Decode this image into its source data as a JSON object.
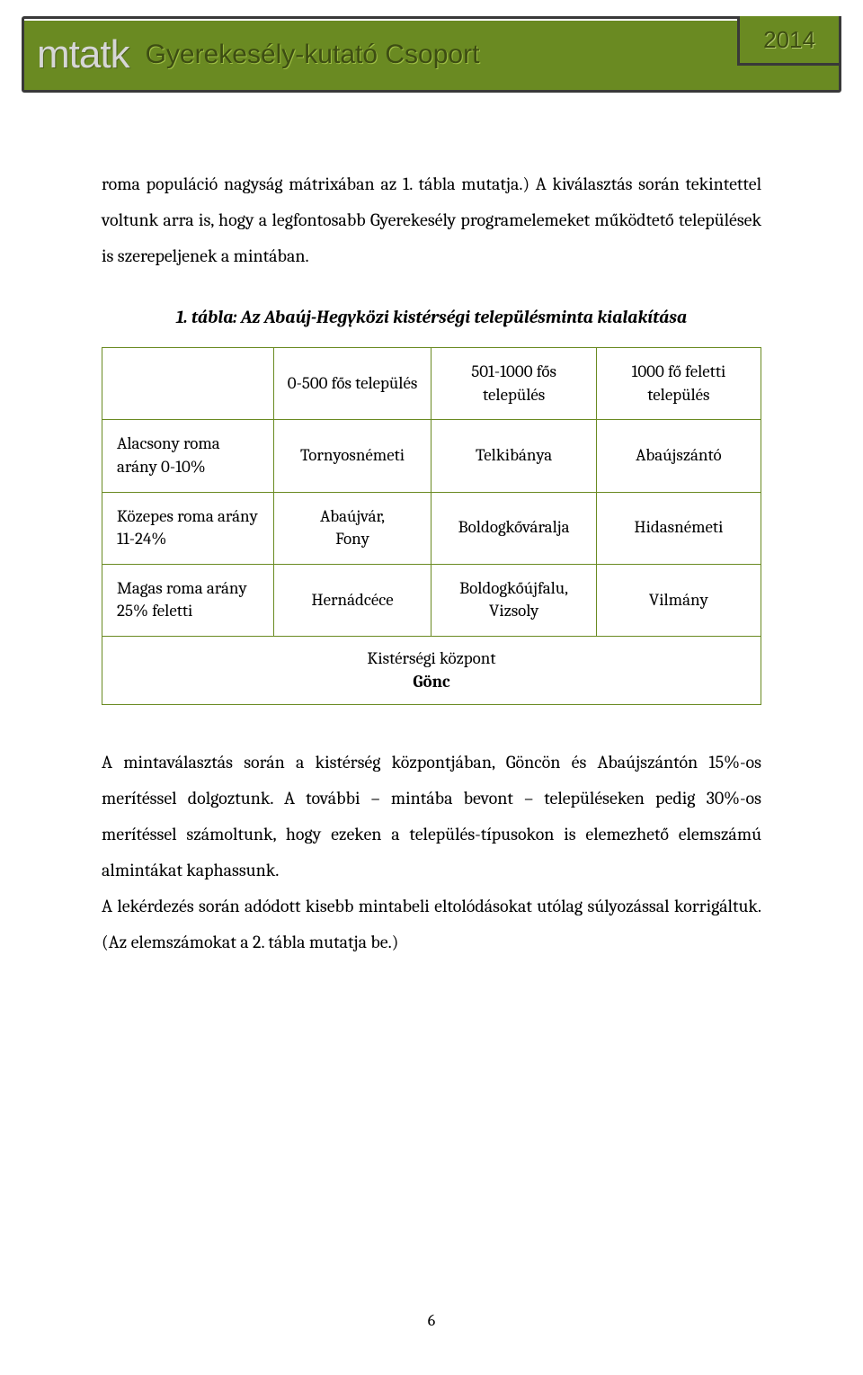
{
  "header": {
    "logo": "mtatk",
    "subtitle": "Gyerekesély-kutató Csoport",
    "year": "2014"
  },
  "paragraphs": {
    "p1": "roma populáció nagyság mátrixában az 1. tábla mutatja.) A kiválasztás során tekintettel voltunk arra is, hogy a legfontosabb Gyerekesély programelemeket működtető települések is szerepeljenek a mintában.",
    "p2": "A mintaválasztás során a kistérség központjában, Göncön és Abaújszántón 15%-os merítéssel dolgoztunk. A további – mintába bevont – településeken pedig 30%-os merítéssel számoltunk, hogy ezeken a település-típusokon is elemezhető elemszámú almintákat kaphassunk.",
    "p3": "A lekérdezés során adódott kisebb mintabeli eltolódásokat utólag súlyozással korrigáltuk. (Az elemszámokat a 2. tábla mutatja be.)"
  },
  "table": {
    "title": "1. tábla: Az Abaúj-Hegyközi kistérségi településminta kialakítása",
    "columns": [
      "",
      "0-500 fős település",
      "501-1000 fős település",
      "1000 fő feletti település"
    ],
    "rows": [
      {
        "label": "Alacsony roma arány 0-10%",
        "c1": "Tornyosnémeti",
        "c2": "Telkibánya",
        "c3": "Abaújszántó"
      },
      {
        "label": "Közepes roma arány 11-24%",
        "c1": "Abaújvár,\nFony",
        "c2": "Boldogkőváralja",
        "c3": "Hidasnémeti"
      },
      {
        "label": "Magas roma arány 25% feletti",
        "c1": "Hernádcéce",
        "c2": "Boldogkőújfalu,\nVizsoly",
        "c3": "Vilmány"
      }
    ],
    "footer_label": "Kistérségi központ",
    "footer_value": "Gönc",
    "border_color": "#6a8a22",
    "header_bg": "#6a8a22"
  },
  "page_number": "6",
  "colors": {
    "olive": "#6a8a22",
    "dark": "#393939"
  }
}
